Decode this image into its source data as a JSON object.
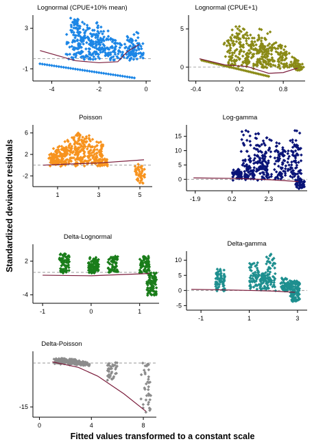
{
  "figure": {
    "ylabel": "Standardized deviance residuals",
    "xlabel": "Fitted values transformed to a constant scale"
  },
  "chart_data": [
    {
      "type": "scatter",
      "title": "Lognormal (CPUE+10% mean)",
      "color": "#1c86e6",
      "xticks": [
        "-4",
        "-2",
        "0"
      ],
      "yticks": [
        "3",
        "-1"
      ],
      "xlim": [
        -4.8,
        0.2
      ],
      "ylim": [
        -2.2,
        4.3
      ],
      "zero_line": true,
      "band_points": [
        [
          -3.2,
          4.0
        ],
        [
          -3.0,
          3.8
        ],
        [
          -2.9,
          3.9
        ],
        [
          -2.7,
          3.6
        ],
        [
          -2.5,
          3.3
        ],
        [
          -2.4,
          3.0
        ],
        [
          -2.2,
          2.8
        ],
        [
          -2.0,
          2.5
        ],
        [
          -1.8,
          2.7
        ],
        [
          -1.6,
          2.2
        ],
        [
          -1.5,
          2.0
        ],
        [
          -1.3,
          1.8
        ],
        [
          -1.2,
          1.5
        ],
        [
          -2.6,
          2.6
        ],
        [
          -2.3,
          2.2
        ],
        [
          -2.1,
          3.5
        ],
        [
          -1.9,
          1.8
        ],
        [
          -2.8,
          3.2
        ],
        [
          -0.8,
          2.2
        ],
        [
          -0.6,
          1.9
        ],
        [
          -0.4,
          2.6
        ],
        [
          -0.3,
          1.5
        ],
        [
          -0.5,
          0.9
        ],
        [
          -0.7,
          1.2
        ]
      ],
      "lower_line": [
        [
          -4.5,
          -0.5
        ],
        [
          -0.5,
          -1.9
        ]
      ],
      "smooth_line": [
        [
          -4.5,
          0.8
        ],
        [
          -3.0,
          -0.2
        ],
        [
          -2.0,
          -0.4
        ],
        [
          -1.2,
          -0.3
        ],
        [
          -0.8,
          0.7
        ],
        [
          -0.3,
          1.4
        ]
      ],
      "density": 380
    },
    {
      "type": "scatter",
      "title": "Lognormal (CPUE+1)",
      "color": "#8a8a16",
      "xticks": [
        "-0.4",
        "0.2",
        "0.8"
      ],
      "yticks": [
        "5",
        "0"
      ],
      "xlim": [
        -0.5,
        1.1
      ],
      "ylim": [
        -1.8,
        6.8
      ],
      "zero_line": true,
      "band_points": [
        [
          0.15,
          5.3
        ],
        [
          0.2,
          4.8
        ],
        [
          0.25,
          5.0
        ],
        [
          0.3,
          4.5
        ],
        [
          0.35,
          4.2
        ],
        [
          0.4,
          3.8
        ],
        [
          0.45,
          3.5
        ],
        [
          0.5,
          3.1
        ],
        [
          0.55,
          2.7
        ],
        [
          0.6,
          2.4
        ],
        [
          0.1,
          4.2
        ],
        [
          0.05,
          3.5
        ],
        [
          0.5,
          4.9
        ],
        [
          0.62,
          4.6
        ],
        [
          0.7,
          3.2
        ],
        [
          0.78,
          2.8
        ],
        [
          0.82,
          1.9
        ],
        [
          0.95,
          1.2
        ],
        [
          1.0,
          0.5
        ],
        [
          1.02,
          -0.4
        ]
      ],
      "lower_line": [
        [
          -0.32,
          0.9
        ],
        [
          0.6,
          -1.2
        ]
      ],
      "smooth_line": [
        [
          -0.35,
          1.1
        ],
        [
          0.0,
          0.3
        ],
        [
          0.3,
          0.1
        ],
        [
          0.6,
          -0.8
        ],
        [
          0.8,
          -0.7
        ],
        [
          1.0,
          -0.1
        ]
      ],
      "density": 380
    },
    {
      "type": "scatter",
      "title": "Poisson",
      "color": "#f7931e",
      "xticks": [
        "1",
        "3",
        "5"
      ],
      "yticks": [
        "6",
        "2",
        "-2"
      ],
      "xlim": [
        -0.2,
        5.6
      ],
      "ylim": [
        -4.0,
        7.5
      ],
      "zero_line": true,
      "band_points": [
        [
          1.2,
          3.5
        ],
        [
          1.5,
          4.5
        ],
        [
          1.8,
          5.2
        ],
        [
          2.1,
          5.6
        ],
        [
          2.4,
          5.3
        ],
        [
          2.7,
          4.8
        ],
        [
          3.0,
          4.2
        ],
        [
          2.0,
          6.0
        ],
        [
          1.0,
          2.8
        ],
        [
          0.8,
          2.0
        ],
        [
          5.0,
          -3.3
        ],
        [
          3.2,
          1.0
        ]
      ],
      "lower_line": [],
      "smooth_line": [
        [
          0.3,
          0.0
        ],
        [
          1.5,
          0.2
        ],
        [
          3.0,
          0.4
        ],
        [
          5.2,
          1.0
        ]
      ],
      "density": 420
    },
    {
      "type": "scatter",
      "title": "Log-gamma",
      "color": "#0a1478",
      "xticks": [
        "-1.9",
        "0.2",
        "2.3"
      ],
      "yticks": [
        "15",
        "10",
        "5",
        "0"
      ],
      "xlim": [
        -2.4,
        4.5
      ],
      "ylim": [
        -4.0,
        19.0
      ],
      "zero_line": true,
      "band_points": [
        [
          1.0,
          17.0
        ],
        [
          1.7,
          16.0
        ],
        [
          2.2,
          14.5
        ],
        [
          3.8,
          17.0
        ],
        [
          2.9,
          12.5
        ],
        [
          3.2,
          10.0
        ],
        [
          3.9,
          12.0
        ],
        [
          1.2,
          4.0
        ],
        [
          2.0,
          8.0
        ],
        [
          0.5,
          3.0
        ],
        [
          4.1,
          -2.8
        ]
      ],
      "lower_line": [],
      "smooth_line": [
        [
          -2.0,
          0.5
        ],
        [
          0.5,
          0.3
        ],
        [
          2.5,
          -0.2
        ],
        [
          4.0,
          -0.8
        ]
      ],
      "density": 420
    },
    {
      "type": "scatter",
      "title": "Delta-Lognormal",
      "color": "#1a7d1a",
      "xticks": [
        "-1",
        "0",
        "1"
      ],
      "yticks": [
        "2",
        "-4"
      ],
      "xlim": [
        -1.2,
        1.4
      ],
      "ylim": [
        -5.5,
        5.0
      ],
      "zero_line": true,
      "band_points": [
        [
          -0.55,
          3.3
        ],
        [
          0.05,
          2.4
        ],
        [
          0.45,
          2.7
        ],
        [
          1.1,
          2.8
        ],
        [
          1.25,
          -4.0
        ]
      ],
      "lower_line": [],
      "smooth_line": [
        [
          -1.0,
          -0.5
        ],
        [
          0.0,
          -0.6
        ],
        [
          1.2,
          -0.2
        ]
      ],
      "density": 380
    },
    {
      "type": "scatter",
      "title": "Delta-gamma",
      "color": "#1e8f8f",
      "xticks": [
        "-1",
        "1",
        "3"
      ],
      "yticks": [
        "10",
        "5",
        "0",
        "-5"
      ],
      "xlim": [
        -1.6,
        3.4
      ],
      "ylim": [
        -6.5,
        13.0
      ],
      "zero_line": true,
      "band_points": [
        [
          -0.2,
          7.0
        ],
        [
          1.9,
          12.0
        ],
        [
          1.2,
          9.0
        ],
        [
          2.5,
          4.0
        ],
        [
          2.9,
          2.8
        ],
        [
          2.9,
          -3.5
        ],
        [
          1.6,
          5.5
        ]
      ],
      "lower_line": [],
      "smooth_line": [
        [
          -1.4,
          0.4
        ],
        [
          0.5,
          0.1
        ],
        [
          2.0,
          -0.2
        ],
        [
          2.9,
          -0.6
        ]
      ],
      "density": 380
    },
    {
      "type": "scatter",
      "title": "Delta-Poisson",
      "color": "#8c8c8c",
      "xticks": [
        "0",
        "4",
        "8"
      ],
      "yticks": [
        "-15"
      ],
      "xlim": [
        -0.5,
        9.0
      ],
      "ylim": [
        -18.5,
        4.0
      ],
      "zero_line": true,
      "band_points": [
        [
          1.5,
          1.5
        ],
        [
          2.0,
          1.2
        ],
        [
          2.5,
          0.8
        ],
        [
          3.0,
          0.2
        ],
        [
          3.5,
          -0.5
        ],
        [
          5.6,
          -5.5
        ],
        [
          8.2,
          -16.8
        ]
      ],
      "lower_line": [],
      "smooth_line": [
        [
          1.0,
          0.4
        ],
        [
          3.0,
          -1.5
        ],
        [
          4.5,
          -4.5
        ],
        [
          6.5,
          -10.5
        ],
        [
          8.2,
          -16.5
        ]
      ],
      "density": 260
    }
  ]
}
